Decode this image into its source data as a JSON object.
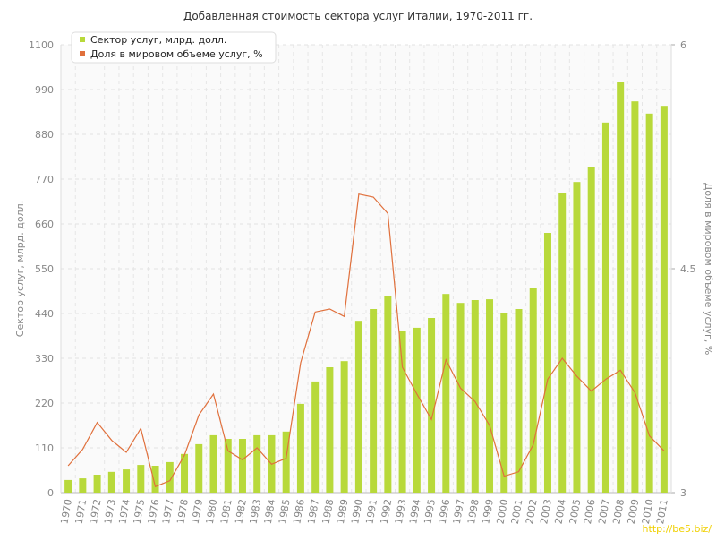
{
  "chart_data": {
    "type": "bar_line",
    "title": "Добавленная стоимость сектора услуг Италии, 1970-2011 гг.",
    "y_label": "Сектор услуг, млрд. долл.",
    "y2_label": "Доля в мировом объеме услуг, %",
    "watermark": "http://be5.biz/",
    "categories": [
      "1970",
      "1971",
      "1972",
      "1973",
      "1974",
      "1975",
      "1976",
      "1977",
      "1978",
      "1979",
      "1980",
      "1981",
      "1982",
      "1983",
      "1984",
      "1985",
      "1986",
      "1987",
      "1988",
      "1989",
      "1990",
      "1991",
      "1992",
      "1993",
      "1994",
      "1995",
      "1996",
      "1997",
      "1998",
      "1999",
      "2000",
      "2001",
      "2002",
      "2003",
      "2004",
      "2005",
      "2006",
      "2007",
      "2008",
      "2009",
      "2010",
      "2011"
    ],
    "series": [
      {
        "name": "Сектор услуг, млрд. долл.",
        "color": "#b8d93a",
        "type": "bar",
        "values": [
          31,
          35,
          44,
          51,
          57,
          68,
          66,
          75,
          95,
          119,
          141,
          132,
          132,
          141,
          141,
          150,
          218,
          273,
          308,
          323,
          422,
          451,
          484,
          396,
          405,
          429,
          488,
          466,
          473,
          475,
          440,
          451,
          502,
          638,
          735,
          763,
          799,
          909,
          1008,
          961,
          931,
          950
        ]
      },
      {
        "name": "Доля в мировом объеме услуг, %",
        "color": "#e0703c",
        "type": "line",
        "axis": "y2",
        "values": [
          3.18,
          3.29,
          3.47,
          3.35,
          3.27,
          3.43,
          3.04,
          3.08,
          3.25,
          3.52,
          3.66,
          3.28,
          3.22,
          3.3,
          3.19,
          3.23,
          3.87,
          4.21,
          4.23,
          4.18,
          5.0,
          4.98,
          4.87,
          3.84,
          3.66,
          3.49,
          3.89,
          3.7,
          3.61,
          3.45,
          3.11,
          3.14,
          3.32,
          3.76,
          3.9,
          3.78,
          3.68,
          3.76,
          3.82,
          3.67,
          3.38,
          3.28
        ]
      }
    ],
    "ylim": [
      0,
      1100
    ],
    "yticks": [
      0,
      110,
      220,
      330,
      440,
      550,
      660,
      770,
      880,
      990,
      1100
    ],
    "y2lim": [
      3,
      6
    ],
    "y2ticks": [
      3,
      4.5,
      6
    ],
    "grid": true,
    "legend": "top-left"
  }
}
